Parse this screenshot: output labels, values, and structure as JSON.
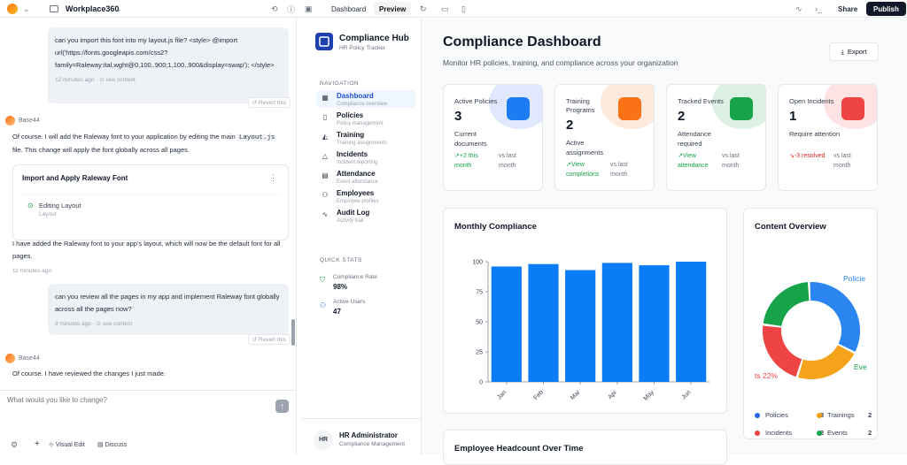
{
  "topbar": {
    "project_name": "Workplace360",
    "tab_dashboard": "Dashboard",
    "tab_preview": "Preview",
    "share": "Share",
    "publish": "Publish"
  },
  "chat": {
    "msg1": {
      "text": "can you import this font into my layout.js file? <style> @import url('https://fonts.googleapis.com/css2?family=Raleway:ital,wght@0,100..900;1,100..900&display=swap'); </style>",
      "time": "12 minutes ago",
      "see_context": "see context",
      "revert": "Revert this"
    },
    "bot_name": "Base44",
    "reply1_pre": "Of course. I will add the Raleway font to your application by editing the main",
    "reply1_code": "Layout.js",
    "reply1_post": "file. This change will apply the font globally across all pages.",
    "card": {
      "title": "Import and Apply Raleway Font",
      "step": "Editing Layout",
      "step_sub": "Layout"
    },
    "reply2": "I have added the Raleway font to your app's layout, which will now be the default font for all pages.",
    "reply2_time": "11 minutes ago",
    "msg2": {
      "text": "can you review all the pages in my app and implement Raleway font globally across all the pages now?",
      "time": "9 minutes ago",
      "see_context": "see context",
      "revert": "Revert this"
    },
    "bot_name2": "Base44",
    "reply3": "Of course. I have reviewed the changes I just made.",
    "input_placeholder": "What would you like to change?",
    "visual_edit": "Visual Edit",
    "discuss": "Discuss"
  },
  "sidebar": {
    "brand_title": "Compliance Hub",
    "brand_sub": "HR Policy Tracker",
    "nav_heading": "NAVIGATION",
    "items": [
      {
        "label": "Dashboard",
        "sub": "Compliance overview",
        "icon": "grid-icon"
      },
      {
        "label": "Policies",
        "sub": "Policy management",
        "icon": "document-icon"
      },
      {
        "label": "Training",
        "sub": "Training assignments",
        "icon": "graduation-cap-icon"
      },
      {
        "label": "Incidents",
        "sub": "Incident reporting",
        "icon": "alert-icon"
      },
      {
        "label": "Attendance",
        "sub": "Event attendance",
        "icon": "calendar-icon"
      },
      {
        "label": "Employees",
        "sub": "Employee profiles",
        "icon": "users-icon"
      },
      {
        "label": "Audit Log",
        "sub": "Activity trail",
        "icon": "activity-icon"
      }
    ],
    "quick_heading": "QUICK STATS",
    "quick": [
      {
        "label": "Compliance Rate",
        "value": "98%"
      },
      {
        "label": "Active Users",
        "value": "47"
      }
    ],
    "user_initials": "HR",
    "user_name": "HR Administrator",
    "user_role": "Compliance Management"
  },
  "dashboard": {
    "title": "Compliance Dashboard",
    "subtitle": "Monitor HR policies, training, and compliance across your organization",
    "export": "Export",
    "stats": [
      {
        "title": "Active Policies",
        "value": "3",
        "desc": "Current documents",
        "trend": "+2 this month",
        "trend_label": "vs last month",
        "color": "#2563eb",
        "trend_color": "#16a34a"
      },
      {
        "title": "Training Programs",
        "value": "2",
        "desc": "Active assignments",
        "trend": "View completions",
        "trend_label": "vs last month",
        "color": "#f97316",
        "trend_color": "#16a34a"
      },
      {
        "title": "Tracked Events",
        "value": "2",
        "desc": "Attendance required",
        "trend": "View attendance",
        "trend_label": "vs last month",
        "color": "#16a34a",
        "trend_color": "#16a34a"
      },
      {
        "title": "Open Incidents",
        "value": "1",
        "desc": "Require attention",
        "trend": "-3 resolved",
        "trend_label": "vs last month",
        "color": "#ef4444",
        "trend_color": "#dc2626"
      }
    ],
    "monthly_title": "Monthly Compliance",
    "content_title": "Content Overview",
    "donut_label_policies": "Policie",
    "donut_label_events": "Eve",
    "donut_label_incidents": "ts 22%",
    "legend": [
      {
        "label": "Policies",
        "value": "3",
        "color": "#2563eb"
      },
      {
        "label": "Trainings",
        "value": "2",
        "color": "#f59e0b"
      },
      {
        "label": "Incidents",
        "value": "2",
        "color": "#ef4444"
      },
      {
        "label": "Events",
        "value": "2",
        "color": "#16a34a"
      }
    ],
    "headcount_title": "Employee Headcount Over Time"
  },
  "chart_data": [
    {
      "type": "bar",
      "title": "Monthly Compliance",
      "categories": [
        "Jan",
        "Feb",
        "Mar",
        "Apr",
        "May",
        "Jun"
      ],
      "values": [
        96,
        98,
        93,
        99,
        97,
        100
      ],
      "ylim": [
        0,
        100
      ],
      "yticks": [
        0,
        25,
        50,
        75,
        100
      ],
      "color": "#0a7cf5"
    },
    {
      "type": "pie",
      "title": "Content Overview",
      "categories": [
        "Policies",
        "Trainings",
        "Incidents",
        "Events"
      ],
      "values": [
        3,
        2,
        2,
        2
      ],
      "colors": [
        "#2a85f0",
        "#f5a31a",
        "#ef4444",
        "#16a34a"
      ]
    }
  ]
}
